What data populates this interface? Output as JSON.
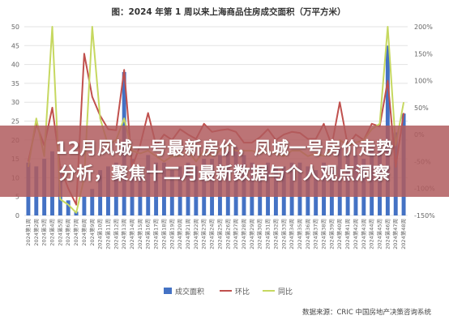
{
  "banner": {
    "line1": "12月凤城一号最新房价，凤城一号房价走势",
    "line2": "分析，聚焦十二月最新数据与个人观点洞察"
  },
  "chart_data": {
    "type": "bar+line",
    "title": "图：2024 年第 1 周以来上海商品住房成交面积（万平方米）",
    "source": "数据来源：CRIC 中国房地产决策咨询系统",
    "left_axis": {
      "min": 0,
      "max": 50,
      "ticks": [
        "0",
        "5",
        "10",
        "15",
        "20",
        "25",
        "30",
        "35",
        "40",
        "45",
        "50"
      ]
    },
    "right_axis": {
      "min": -150,
      "max": 200,
      "ticks": [
        "-150%",
        "-100%",
        "-50%",
        "0%",
        "50%",
        "100%",
        "150%",
        "200%"
      ]
    },
    "colors": {
      "bar": "#4472C4",
      "mom": "#C0504D",
      "yoy": "#C6D860"
    },
    "legend": [
      "成交面积",
      "环比",
      "同比"
    ],
    "categories": [
      "2024第1周",
      "2024第2周",
      "2024第3周",
      "2024第4周",
      "2024第5周",
      "2024第6周",
      "2024第7周",
      "2024第8周",
      "2024第9周",
      "2024第10周",
      "2024第11周",
      "2024第12周",
      "2024第13周",
      "2024第14周",
      "2024第15周",
      "2024第16周",
      "2024第17周",
      "2024第18周",
      "2024第19周",
      "2024第20周",
      "2024第21周",
      "2024第22周",
      "2024第23周",
      "2024第24周",
      "2024第25周",
      "2024第26周",
      "2024第27周",
      "2024第28周",
      "2024第29周",
      "2024第30周",
      "2024第31周",
      "2024第32周",
      "2024第33周",
      "2024第34周",
      "2024第35周",
      "2024第36周",
      "2024第37周",
      "2024第38周",
      "2024第39周",
      "2024第40周",
      "2024第41周",
      "2024第42周",
      "2024第43周",
      "2024第44周",
      "2024第45周",
      "2024第46周",
      "2024第47周",
      "2024第48周"
    ],
    "series": [
      {
        "name": "成交面积",
        "kind": "bar",
        "axis": "left",
        "values": [
          14,
          13,
          15,
          17,
          13,
          4,
          1,
          5,
          7,
          12,
          13,
          14,
          38,
          15,
          13,
          16,
          14,
          14,
          12,
          13,
          14,
          13,
          15,
          15,
          16,
          17,
          18,
          16,
          14,
          13,
          14,
          13,
          13,
          14,
          14,
          13,
          12,
          14,
          12,
          18,
          16,
          16,
          15,
          18,
          20,
          45,
          22,
          27
        ]
      },
      {
        "name": "环比",
        "kind": "line",
        "axis": "right",
        "values": [
          -50,
          20,
          -20,
          50,
          -60,
          -100,
          -130,
          150,
          70,
          35,
          10,
          8,
          120,
          -60,
          -20,
          40,
          -20,
          0,
          -10,
          10,
          0,
          -8,
          20,
          5,
          8,
          10,
          5,
          -15,
          -15,
          -5,
          10,
          -10,
          0,
          5,
          3,
          -8,
          -8,
          20,
          -20,
          60,
          -20,
          0,
          -10,
          20,
          15,
          100,
          -60,
          40
        ]
      },
      {
        "name": "同比",
        "kind": "line",
        "axis": "right",
        "values": [
          -60,
          30,
          -40,
          200,
          -120,
          -130,
          -145,
          -80,
          200,
          30,
          -20,
          -10,
          30,
          -30,
          -35,
          -30,
          -40,
          -50,
          -40,
          -40,
          -30,
          -50,
          -30,
          -40,
          -30,
          -20,
          -30,
          -30,
          -30,
          -35,
          -30,
          -35,
          -40,
          -30,
          -30,
          -40,
          -35,
          -40,
          -30,
          -10,
          -20,
          -15,
          -10,
          10,
          20,
          200,
          -20,
          60
        ]
      }
    ]
  }
}
